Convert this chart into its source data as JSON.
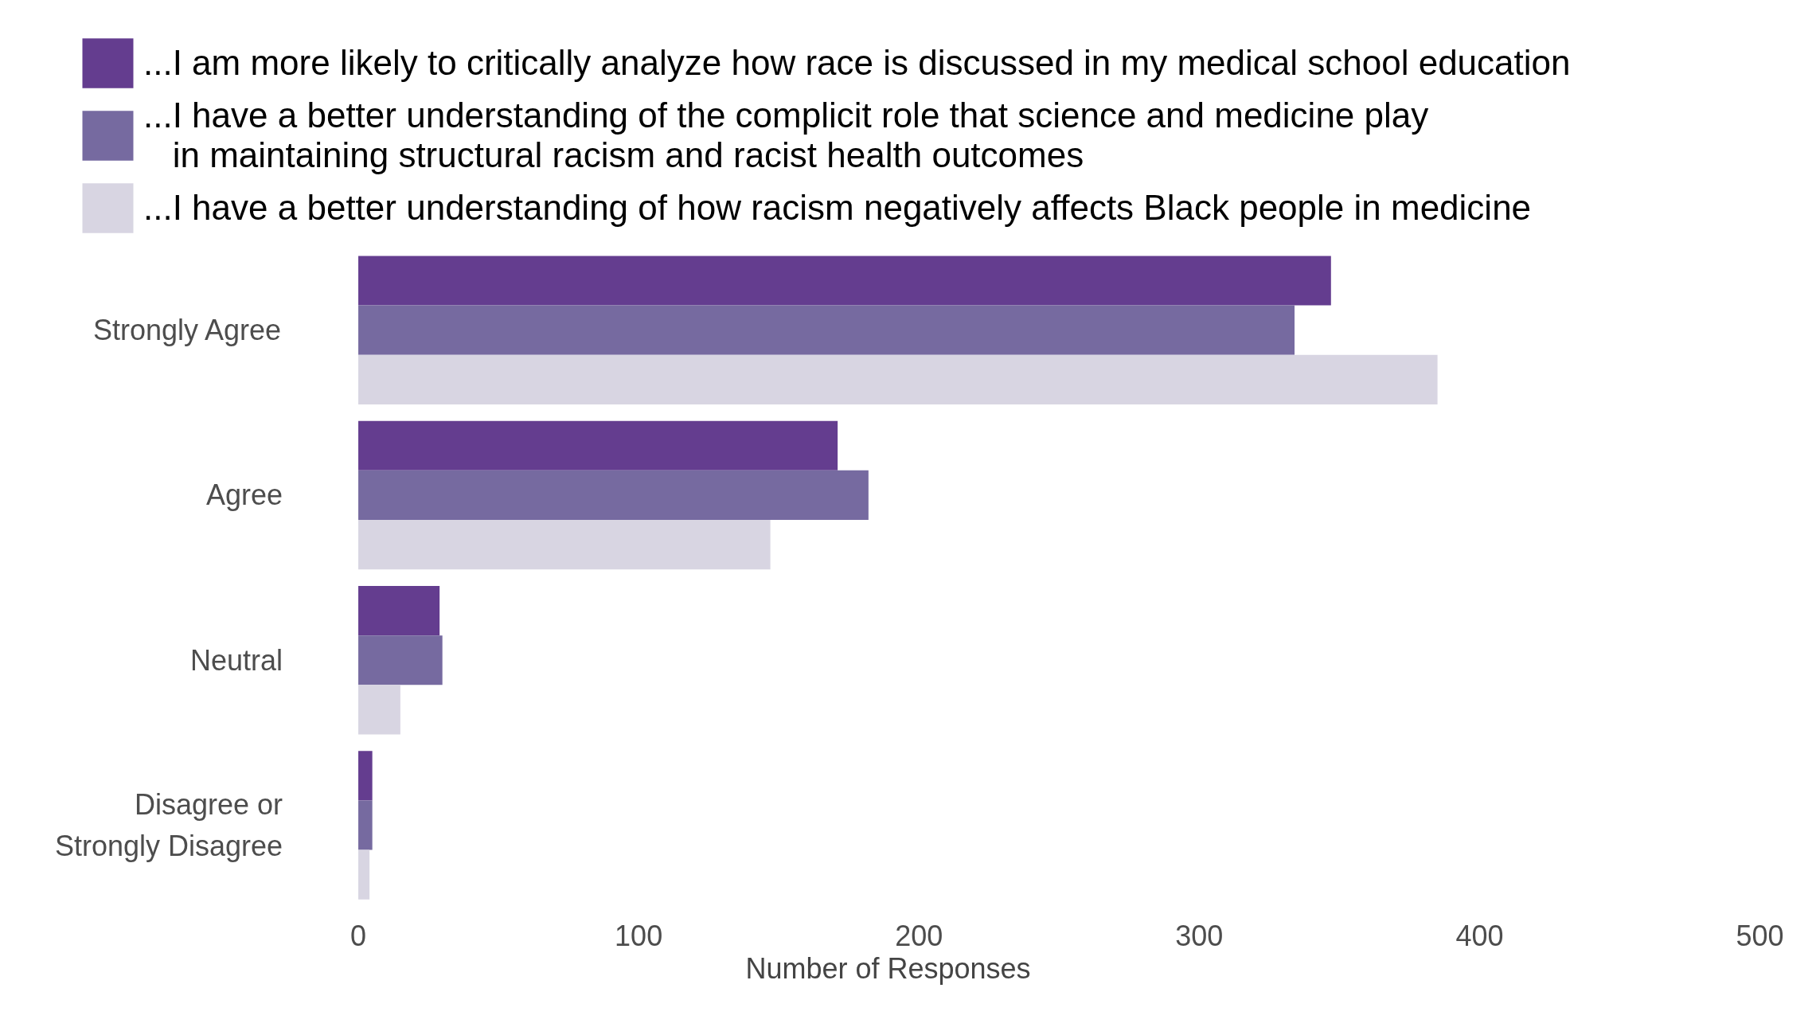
{
  "chart_data": {
    "type": "bar",
    "orientation": "horizontal",
    "categories": [
      "Strongly Agree",
      "Agree",
      "Neutral",
      "Disagree or\nStrongly Disagree"
    ],
    "series": [
      {
        "name": "...I am more likely to critically analyze how race is discussed in my medical school education",
        "color": "#643d8f",
        "values": [
          347,
          171,
          29,
          5
        ]
      },
      {
        "name": "...I have a better understanding of the complicit role that science and medicine play\n   in maintaining structural racism and racist health outcomes",
        "color": "#766aa0",
        "values": [
          334,
          182,
          30,
          5
        ]
      },
      {
        "name": "...I have a better understanding of how racism negatively affects Black people in medicine",
        "color": "#d8d5e2",
        "values": [
          385,
          147,
          15,
          4
        ]
      }
    ],
    "xlabel": "Number of Responses",
    "xlim": [
      0,
      500
    ],
    "xticks": [
      0,
      100,
      200,
      300,
      400,
      500
    ],
    "grid": false,
    "legend": "top left"
  }
}
